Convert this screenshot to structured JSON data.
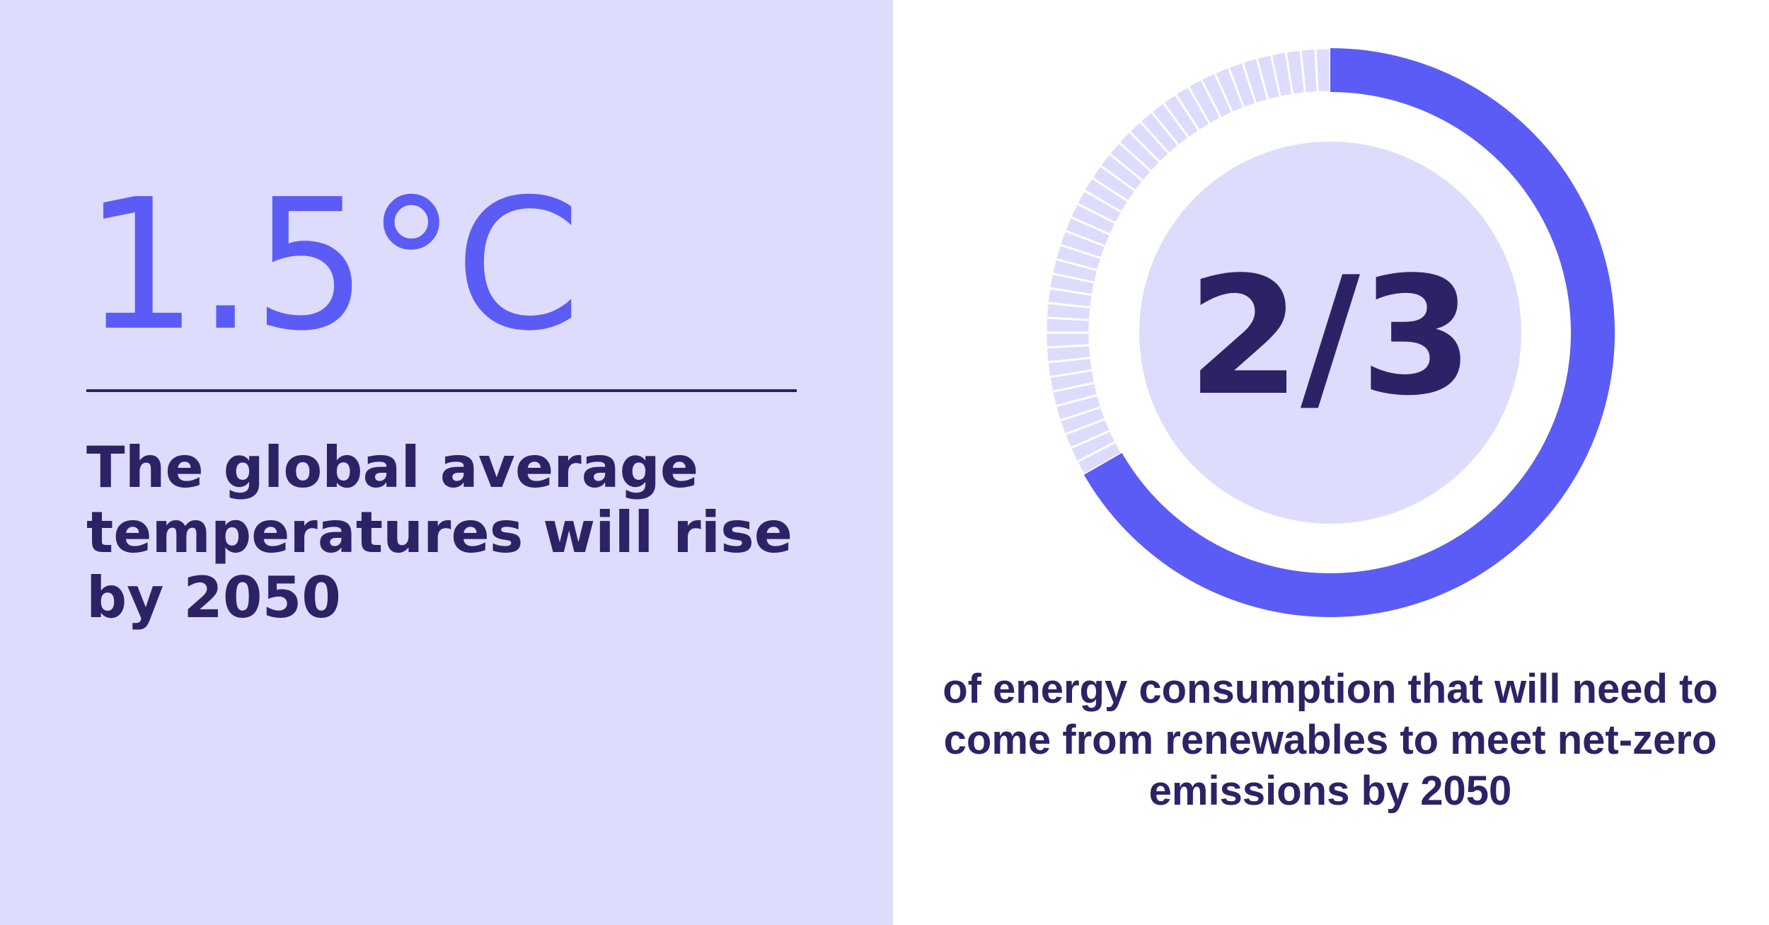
{
  "left": {
    "stat": "1.5°C",
    "caption": "The global average temperatures will rise by 2050"
  },
  "right": {
    "stat": "2/3",
    "caption": "of energy consumption that will need to come from renewables to meet net-zero emissions by 2050",
    "fraction_filled": 0.6667
  },
  "colors": {
    "left_background": "#dedcfc",
    "accent_blue": "#5b5cf6",
    "dark_navy": "#2e2266",
    "ring_unfilled": "#dedcfc",
    "inner_circle": "#dedcfc"
  }
}
